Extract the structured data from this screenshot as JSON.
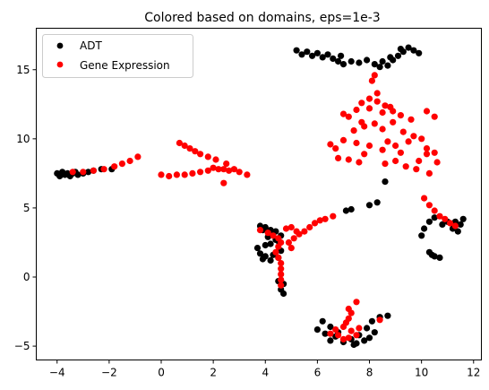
{
  "chart_data": {
    "type": "scatter",
    "title": "Colored based on domains, eps=1e-3",
    "xlabel": "",
    "ylabel": "",
    "xlim": [
      -4.8,
      12.3
    ],
    "ylim": [
      -6.0,
      18.0
    ],
    "xticks": [
      -4,
      -2,
      0,
      2,
      4,
      6,
      8,
      10,
      12
    ],
    "yticks": [
      -5,
      0,
      5,
      10,
      15
    ],
    "xtick_labels": [
      "−4",
      "−2",
      "0",
      "2",
      "4",
      "6",
      "8",
      "10",
      "12"
    ],
    "ytick_labels": [
      "−5",
      "0",
      "5",
      "10",
      "15"
    ],
    "grid": false,
    "legend_position": "top-left",
    "legend": [
      {
        "label": "ADT",
        "color": "#000000"
      },
      {
        "label": "Gene Expression",
        "color": "#ff0000"
      }
    ],
    "series": [
      {
        "name": "ADT",
        "color": "#000000",
        "points": [
          [
            -4.0,
            7.5
          ],
          [
            -3.9,
            7.3
          ],
          [
            -3.8,
            7.6
          ],
          [
            -3.7,
            7.4
          ],
          [
            -3.6,
            7.5
          ],
          [
            -3.5,
            7.3
          ],
          [
            -3.4,
            7.5
          ],
          [
            -3.3,
            7.6
          ],
          [
            -3.2,
            7.4
          ],
          [
            -3.0,
            7.5
          ],
          [
            -2.8,
            7.6
          ],
          [
            -2.6,
            7.7
          ],
          [
            -2.3,
            7.8
          ],
          [
            -1.9,
            7.8
          ],
          [
            5.2,
            16.4
          ],
          [
            5.4,
            16.1
          ],
          [
            5.6,
            16.3
          ],
          [
            5.8,
            16.0
          ],
          [
            6.0,
            16.2
          ],
          [
            6.2,
            15.9
          ],
          [
            6.4,
            16.1
          ],
          [
            6.6,
            15.8
          ],
          [
            6.8,
            15.6
          ],
          [
            7.0,
            15.4
          ],
          [
            7.3,
            15.6
          ],
          [
            7.6,
            15.5
          ],
          [
            7.9,
            15.7
          ],
          [
            8.2,
            15.4
          ],
          [
            8.5,
            15.6
          ],
          [
            8.7,
            15.3
          ],
          [
            8.9,
            15.7
          ],
          [
            9.1,
            16.0
          ],
          [
            9.3,
            16.3
          ],
          [
            9.5,
            16.6
          ],
          [
            9.7,
            16.4
          ],
          [
            9.9,
            16.2
          ],
          [
            8.4,
            15.2
          ],
          [
            8.8,
            15.9
          ],
          [
            6.9,
            16.0
          ],
          [
            9.2,
            16.5
          ],
          [
            7.1,
            4.8
          ],
          [
            7.3,
            4.9
          ],
          [
            8.0,
            5.2
          ],
          [
            8.3,
            5.4
          ],
          [
            8.6,
            6.9
          ],
          [
            3.8,
            3.7
          ],
          [
            4.0,
            3.6
          ],
          [
            4.2,
            3.4
          ],
          [
            4.4,
            3.3
          ],
          [
            3.9,
            3.4
          ],
          [
            4.3,
            3.1
          ],
          [
            4.6,
            3.0
          ],
          [
            4.1,
            2.9
          ],
          [
            4.4,
            2.7
          ],
          [
            4.2,
            2.4
          ],
          [
            4.5,
            2.6
          ],
          [
            4.0,
            2.3
          ],
          [
            3.7,
            2.1
          ],
          [
            3.8,
            1.7
          ],
          [
            4.0,
            1.5
          ],
          [
            4.3,
            1.6
          ],
          [
            4.6,
            1.9
          ],
          [
            3.9,
            1.3
          ],
          [
            4.2,
            1.2
          ],
          [
            4.5,
            1.4
          ],
          [
            4.7,
            -0.5
          ],
          [
            4.6,
            -0.9
          ],
          [
            4.7,
            -1.2
          ],
          [
            4.5,
            -0.3
          ],
          [
            6.2,
            -3.2
          ],
          [
            6.5,
            -3.6
          ],
          [
            6.0,
            -3.8
          ],
          [
            6.3,
            -4.1
          ],
          [
            6.7,
            -4.3
          ],
          [
            6.5,
            -4.6
          ],
          [
            7.0,
            -4.7
          ],
          [
            7.3,
            -4.5
          ],
          [
            7.5,
            -4.8
          ],
          [
            7.8,
            -4.6
          ],
          [
            8.0,
            -4.4
          ],
          [
            8.2,
            -4.0
          ],
          [
            7.6,
            -4.2
          ],
          [
            7.9,
            -3.7
          ],
          [
            7.4,
            -4.9
          ],
          [
            8.1,
            -3.2
          ],
          [
            8.4,
            -2.9
          ],
          [
            8.7,
            -2.8
          ],
          [
            6.8,
            -4.0
          ],
          [
            10.0,
            3.0
          ],
          [
            10.1,
            3.5
          ],
          [
            10.3,
            4.0
          ],
          [
            10.5,
            4.3
          ],
          [
            10.8,
            3.8
          ],
          [
            10.3,
            1.8
          ],
          [
            10.5,
            1.5
          ],
          [
            10.7,
            1.4
          ],
          [
            10.4,
            1.6
          ],
          [
            11.2,
            3.5
          ],
          [
            11.3,
            4.0
          ],
          [
            11.4,
            3.3
          ],
          [
            11.5,
            3.8
          ],
          [
            11.6,
            4.2
          ],
          [
            11.0,
            4.0
          ]
        ]
      },
      {
        "name": "Gene Expression",
        "color": "#ff0000",
        "points": [
          [
            -3.4,
            7.6
          ],
          [
            -3.0,
            7.6
          ],
          [
            -2.6,
            7.7
          ],
          [
            -2.2,
            7.8
          ],
          [
            -1.8,
            8.0
          ],
          [
            -1.5,
            8.2
          ],
          [
            -1.2,
            8.4
          ],
          [
            -0.9,
            8.7
          ],
          [
            0.0,
            7.4
          ],
          [
            0.3,
            7.3
          ],
          [
            0.6,
            7.4
          ],
          [
            0.9,
            7.4
          ],
          [
            1.2,
            7.5
          ],
          [
            1.5,
            7.6
          ],
          [
            1.8,
            7.7
          ],
          [
            2.0,
            7.9
          ],
          [
            2.2,
            7.8
          ],
          [
            2.4,
            7.8
          ],
          [
            2.6,
            7.7
          ],
          [
            2.4,
            6.8
          ],
          [
            0.7,
            9.7
          ],
          [
            0.9,
            9.5
          ],
          [
            1.1,
            9.3
          ],
          [
            1.3,
            9.1
          ],
          [
            1.5,
            8.9
          ],
          [
            1.8,
            8.7
          ],
          [
            2.1,
            8.5
          ],
          [
            2.5,
            8.2
          ],
          [
            2.8,
            7.8
          ],
          [
            3.0,
            7.6
          ],
          [
            3.3,
            7.4
          ],
          [
            7.2,
            11.6
          ],
          [
            7.5,
            12.1
          ],
          [
            7.7,
            12.6
          ],
          [
            8.0,
            12.2
          ],
          [
            8.3,
            12.7
          ],
          [
            8.6,
            12.4
          ],
          [
            8.9,
            12.0
          ],
          [
            9.2,
            11.7
          ],
          [
            7.4,
            10.6
          ],
          [
            7.8,
            10.9
          ],
          [
            8.2,
            11.1
          ],
          [
            8.5,
            10.7
          ],
          [
            8.9,
            11.2
          ],
          [
            9.3,
            10.5
          ],
          [
            9.7,
            10.2
          ],
          [
            10.0,
            10.0
          ],
          [
            6.5,
            9.6
          ],
          [
            7.0,
            9.9
          ],
          [
            7.5,
            9.7
          ],
          [
            8.0,
            9.5
          ],
          [
            8.5,
            9.2
          ],
          [
            9.0,
            9.5
          ],
          [
            9.5,
            9.8
          ],
          [
            10.2,
            9.3
          ],
          [
            10.5,
            9.0
          ],
          [
            6.8,
            8.6
          ],
          [
            7.2,
            8.5
          ],
          [
            7.8,
            8.9
          ],
          [
            8.6,
            8.2
          ],
          [
            9.0,
            8.4
          ],
          [
            9.4,
            8.0
          ],
          [
            9.8,
            7.8
          ],
          [
            10.3,
            7.5
          ],
          [
            10.6,
            8.3
          ],
          [
            10.2,
            8.9
          ],
          [
            10.5,
            11.6
          ],
          [
            10.2,
            12.0
          ],
          [
            8.3,
            13.3
          ],
          [
            8.2,
            14.6
          ],
          [
            8.1,
            14.2
          ],
          [
            8.0,
            12.9
          ],
          [
            8.5,
            11.9
          ],
          [
            7.0,
            11.8
          ],
          [
            7.7,
            11.2
          ],
          [
            8.8,
            12.3
          ],
          [
            9.6,
            11.4
          ],
          [
            6.7,
            9.3
          ],
          [
            7.6,
            8.3
          ],
          [
            8.7,
            9.8
          ],
          [
            9.2,
            9.0
          ],
          [
            9.9,
            8.4
          ],
          [
            10.1,
            5.7
          ],
          [
            10.3,
            5.2
          ],
          [
            10.5,
            4.8
          ],
          [
            10.7,
            4.4
          ],
          [
            10.9,
            4.2
          ],
          [
            11.1,
            3.9
          ],
          [
            11.3,
            3.7
          ],
          [
            3.8,
            3.4
          ],
          [
            4.1,
            3.2
          ],
          [
            4.3,
            3.0
          ],
          [
            4.5,
            2.8
          ],
          [
            4.6,
            2.5
          ],
          [
            4.5,
            2.2
          ],
          [
            4.4,
            1.8
          ],
          [
            4.5,
            1.4
          ],
          [
            4.6,
            1.0
          ],
          [
            4.6,
            0.6
          ],
          [
            4.6,
            0.2
          ],
          [
            4.6,
            -0.2
          ],
          [
            4.6,
            -0.6
          ],
          [
            4.9,
            2.5
          ],
          [
            5.1,
            2.8
          ],
          [
            5.3,
            3.1
          ],
          [
            5.5,
            3.3
          ],
          [
            5.7,
            3.6
          ],
          [
            5.9,
            3.9
          ],
          [
            6.1,
            4.1
          ],
          [
            6.3,
            4.2
          ],
          [
            6.6,
            4.4
          ],
          [
            4.8,
            3.5
          ],
          [
            5.0,
            3.6
          ],
          [
            5.2,
            3.3
          ],
          [
            5.0,
            2.1
          ],
          [
            7.2,
            -2.3
          ],
          [
            7.3,
            -2.6
          ],
          [
            7.2,
            -3.0
          ],
          [
            7.1,
            -3.3
          ],
          [
            7.0,
            -3.6
          ],
          [
            6.7,
            -3.8
          ],
          [
            6.5,
            -4.1
          ],
          [
            6.8,
            -4.2
          ],
          [
            7.0,
            -4.5
          ],
          [
            7.2,
            -4.4
          ],
          [
            7.5,
            -4.2
          ],
          [
            7.6,
            -3.7
          ],
          [
            7.3,
            -3.9
          ],
          [
            7.5,
            -1.8
          ],
          [
            8.4,
            -3.1
          ]
        ]
      }
    ]
  }
}
